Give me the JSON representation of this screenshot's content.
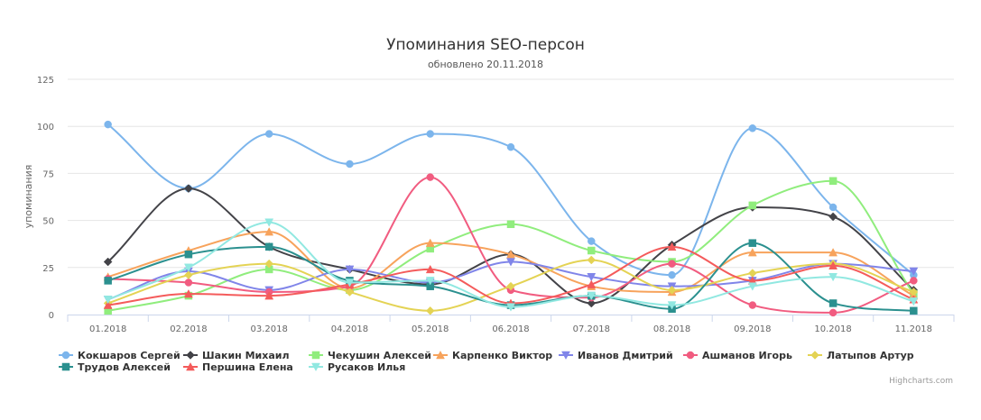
{
  "chart_data": {
    "type": "line",
    "title": "Упоминания SEO-персон",
    "subtitle": "обновлено 20.11.2018",
    "ylabel": "упоминания",
    "xlabel": "",
    "ylim": [
      0,
      125
    ],
    "yticks": [
      0,
      25,
      50,
      75,
      100,
      125
    ],
    "grid": true,
    "legend_position": "bottom-left",
    "categories": [
      "01.2018",
      "02.2018",
      "03.2018",
      "04.2018",
      "05.2018",
      "06.2018",
      "07.2018",
      "08.2018",
      "09.2018",
      "10.2018",
      "11.2018"
    ],
    "series": [
      {
        "name": "Кокшаров Сергей",
        "color": "#7cb5ec",
        "marker": "circle",
        "values": [
          101,
          67,
          96,
          80,
          96,
          89,
          39,
          21,
          99,
          57,
          21
        ]
      },
      {
        "name": "Шакин Михаил",
        "color": "#434348",
        "marker": "diamond",
        "values": [
          28,
          67,
          36,
          24,
          16,
          32,
          6,
          37,
          57,
          52,
          13
        ]
      },
      {
        "name": "Чекушин Алексей",
        "color": "#90ed7d",
        "marker": "square",
        "values": [
          2,
          10,
          24,
          13,
          35,
          48,
          34,
          28,
          58,
          71,
          11
        ]
      },
      {
        "name": "Карпенко Виктор",
        "color": "#f7a35c",
        "marker": "triangle",
        "values": [
          20,
          34,
          44,
          14,
          38,
          32,
          15,
          12,
          33,
          33,
          10
        ]
      },
      {
        "name": "Иванов Дмитрий",
        "color": "#8085e9",
        "marker": "triangle-down",
        "values": [
          8,
          23,
          13,
          24,
          17,
          28,
          20,
          15,
          18,
          27,
          23
        ]
      },
      {
        "name": "Ашманов Игорь",
        "color": "#f15c80",
        "marker": "circle",
        "values": [
          19,
          17,
          12,
          15,
          73,
          13,
          9,
          27,
          5,
          1,
          18
        ]
      },
      {
        "name": "Латыпов Артур",
        "color": "#e4d354",
        "marker": "diamond",
        "values": [
          6,
          21,
          27,
          12,
          2,
          15,
          29,
          13,
          22,
          27,
          12
        ]
      },
      {
        "name": "Трудов Алексей",
        "color": "#2b908f",
        "marker": "square",
        "values": [
          18,
          32,
          36,
          18,
          15,
          5,
          10,
          3,
          38,
          6,
          2
        ]
      },
      {
        "name": "Першина Елена",
        "color": "#f45b5b",
        "marker": "triangle",
        "values": [
          5,
          11,
          10,
          16,
          24,
          6,
          16,
          36,
          18,
          26,
          8
        ]
      },
      {
        "name": "Русаков Илья",
        "color": "#91e8e1",
        "marker": "triangle-down",
        "values": [
          8,
          25,
          49,
          17,
          18,
          4,
          10,
          5,
          15,
          20,
          7
        ]
      }
    ],
    "credits": "Highcharts.com"
  }
}
